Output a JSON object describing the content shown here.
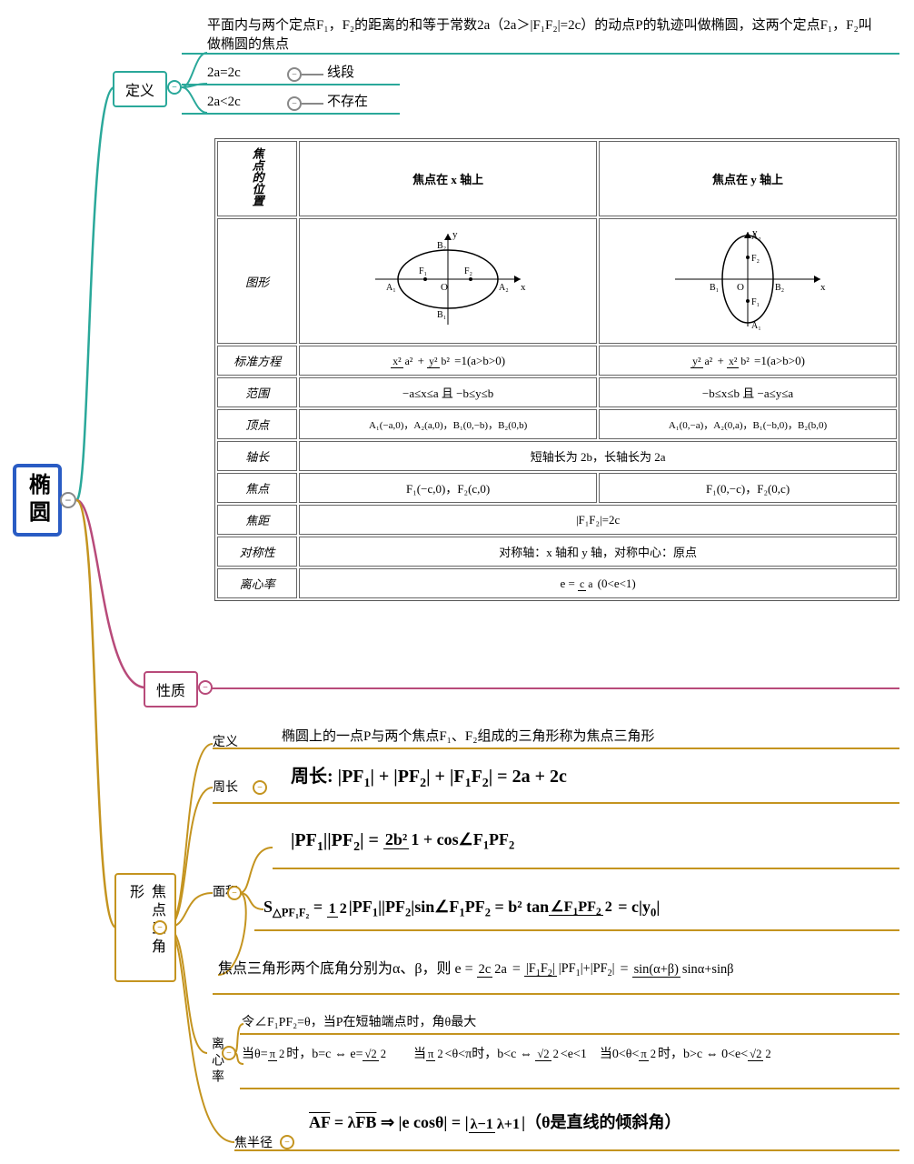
{
  "root": {
    "label": "椭圆"
  },
  "colors": {
    "root": "#2a5cc4",
    "def": "#2aa89a",
    "prop": "#b84a7a",
    "tri": "#c4941f",
    "table_border": "#555",
    "text": "#000",
    "bg": "#fff"
  },
  "def": {
    "label": "定义",
    "text": "平面内与两个定点F₁，F₂的距离的和等于常数2a（2a＞|F₁F₂|=2c）的动点P的轨迹叫做椭圆，这两个定点F₁，F₂叫做椭圆的焦点",
    "sub": [
      {
        "cond": "2a=2c",
        "res": "线段"
      },
      {
        "cond": "2a<2c",
        "res": "不存在"
      }
    ]
  },
  "prop": {
    "label": "性质"
  },
  "table": {
    "head": [
      "焦点的位置",
      "焦点在 x 轴上",
      "焦点在 y 轴上"
    ],
    "rows": [
      {
        "label": "图形",
        "col1_type": "ellipse_h",
        "col2_type": "ellipse_v"
      },
      {
        "label": "标准方程",
        "col1": "x²/a² + y²/b² = 1 (a>b>0)",
        "col2": "y²/a² + x²/b² = 1 (a>b>0)"
      },
      {
        "label": "范围",
        "col1": "−a≤x≤a 且 −b≤y≤b",
        "col2": "−b≤x≤b 且 −a≤y≤a"
      },
      {
        "label": "顶点",
        "col1": "A₁(−a,0)，A₂(a,0)，B₁(0,−b)，B₂(0,b)",
        "col2": "A₁(0,−a)，A₂(0,a)，B₁(−b,0)，B₂(b,0)"
      },
      {
        "label": "轴长",
        "span": "短轴长为 2b，长轴长为 2a"
      },
      {
        "label": "焦点",
        "col1": "F₁(−c,0)，F₂(c,0)",
        "col2": "F₁(0,−c)，F₂(0,c)"
      },
      {
        "label": "焦距",
        "span": "|F₁F₂|=2c"
      },
      {
        "label": "对称性",
        "span": "对称轴：x 轴和 y 轴，对称中心：原点"
      },
      {
        "label": "离心率",
        "span": "e = c/a (0<e<1)"
      }
    ]
  },
  "tri": {
    "label": "焦点三角形",
    "items": {
      "def": {
        "label": "定义",
        "text": "椭圆上的一点P与两个焦点F₁、F₂组成的三角形称为焦点三角形"
      },
      "peri": {
        "label": "周长",
        "formula": "周长: |PF₁| + |PF₂| + |F₁F₂| = 2a + 2c"
      },
      "area": {
        "label": "面积",
        "f1": "|PF₁||PF₂| = 2b² / (1 + cos∠F₁PF₂)",
        "f2": "S△PF₁F₂ = ½|PF₁||PF₂|sin∠F₁PF₂ = b² tan(∠F₁PF₂/2) = c|y₀|",
        "f3": "焦点三角形两个底角分别为α、β，则 e = 2c/2a = |F₁F₂|/(|PF₁|+|PF₂|) = sin(α+β)/(sinα+sinβ)"
      },
      "ecc": {
        "label": "离心率",
        "f1": "令∠F₁PF₂=θ，当P在短轴端点时，角θ最大",
        "f2": "当θ=π/2时，b=c ⇔ e=√2/2　　当π/2<θ<π时，b<c ⇔ √2/2<e<1　当0<θ<π/2时，b>c ⇔ 0<e<√2/2"
      },
      "rad": {
        "label": "焦半径",
        "formula": "A͞F = λF͞B ⇒ |e cosθ| = |(λ−1)/(λ+1)| （θ是直线的倾斜角）"
      }
    }
  }
}
